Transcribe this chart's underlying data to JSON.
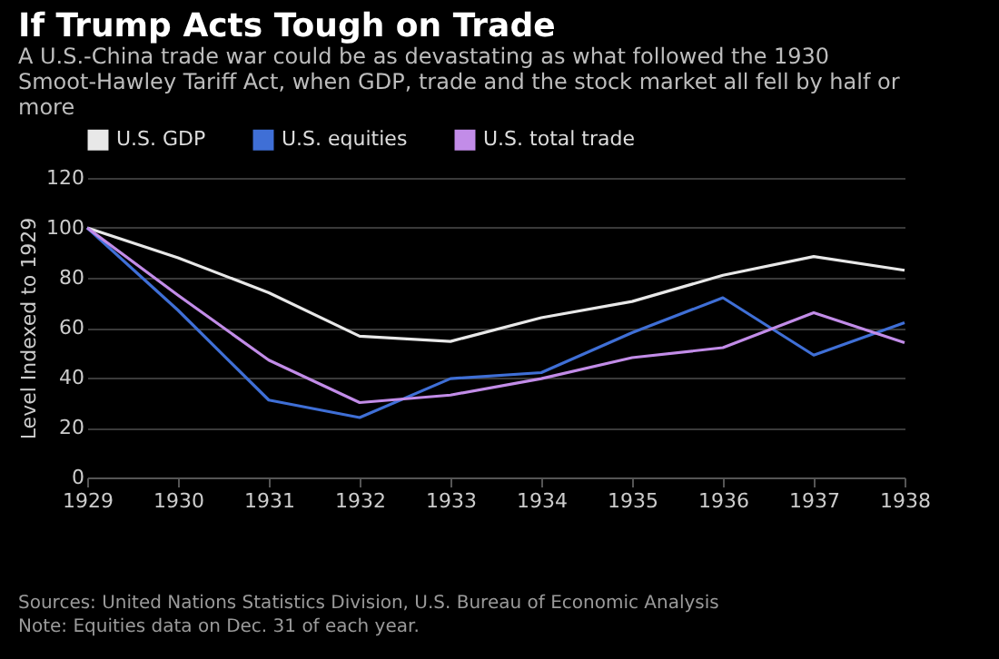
{
  "chart_data": {
    "type": "line",
    "title": "If Trump Acts Tough on Trade",
    "subtitle": "A U.S.-China trade war could be as devastating as what followed the 1930 Smoot-Hawley Tariff Act, when GDP, trade and the stock market all fell by half or more",
    "ylabel": "Level Indexed to 1929",
    "x": [
      1929,
      1930,
      1931,
      1932,
      1933,
      1934,
      1935,
      1936,
      1937,
      1938
    ],
    "series": [
      {
        "name": "U.S. GDP",
        "color": "#e8e8e8",
        "values": [
          100,
          88,
          74,
          56.6,
          54.5,
          64,
          70.5,
          81,
          88.5,
          83
        ]
      },
      {
        "name": "U.S. equities",
        "color": "#3f6fd6",
        "values": [
          100,
          67,
          31,
          24,
          39.6,
          42,
          58,
          72,
          49,
          62
        ]
      },
      {
        "name": "U.S. total trade",
        "color": "#c28ce8",
        "values": [
          100,
          73,
          47,
          30,
          33,
          39.6,
          48,
          52,
          66,
          54
        ]
      }
    ],
    "xlim": [
      1929,
      1938
    ],
    "xticks": [
      1929,
      1930,
      1931,
      1932,
      1933,
      1934,
      1935,
      1936,
      1937,
      1938
    ],
    "ylim": [
      0,
      120
    ],
    "yticks": [
      0,
      20,
      40,
      60,
      80,
      100,
      120
    ],
    "grid": "y",
    "legend": "top left",
    "marker": "none",
    "line_style": "solid",
    "annotations": [
      "Sources: United Nations Statistics Division, U.S. Bureau of Economic Analysis",
      "Note: Equities data on Dec. 31 of each year."
    ]
  }
}
